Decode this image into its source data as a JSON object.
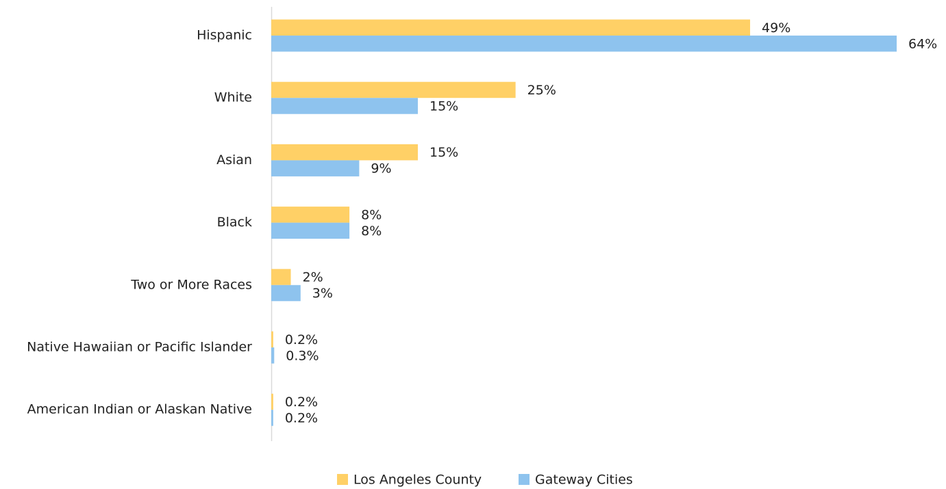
{
  "chart_data": {
    "type": "bar",
    "orientation": "horizontal",
    "categories": [
      "Hispanic",
      "White",
      "Asian",
      "Black",
      "Two or More Races",
      "Native Hawaiian or Pacific Islander",
      "American Indian or Alaskan Native"
    ],
    "series": [
      {
        "name": "Los Angeles County",
        "color": "#ffd066",
        "values": [
          49,
          25,
          15,
          8,
          2,
          0.2,
          0.2
        ],
        "value_labels": [
          "49%",
          "25%",
          "15%",
          "8%",
          "2%",
          "0.2%",
          "0.2%"
        ]
      },
      {
        "name": "Gateway Cities",
        "color": "#8ec3ee",
        "values": [
          64,
          15,
          9,
          8,
          3,
          0.3,
          0.2
        ],
        "value_labels": [
          "64%",
          "15%",
          "9%",
          "8%",
          "3%",
          "0.3%",
          "0.2%"
        ]
      }
    ],
    "legend": "bottom"
  }
}
